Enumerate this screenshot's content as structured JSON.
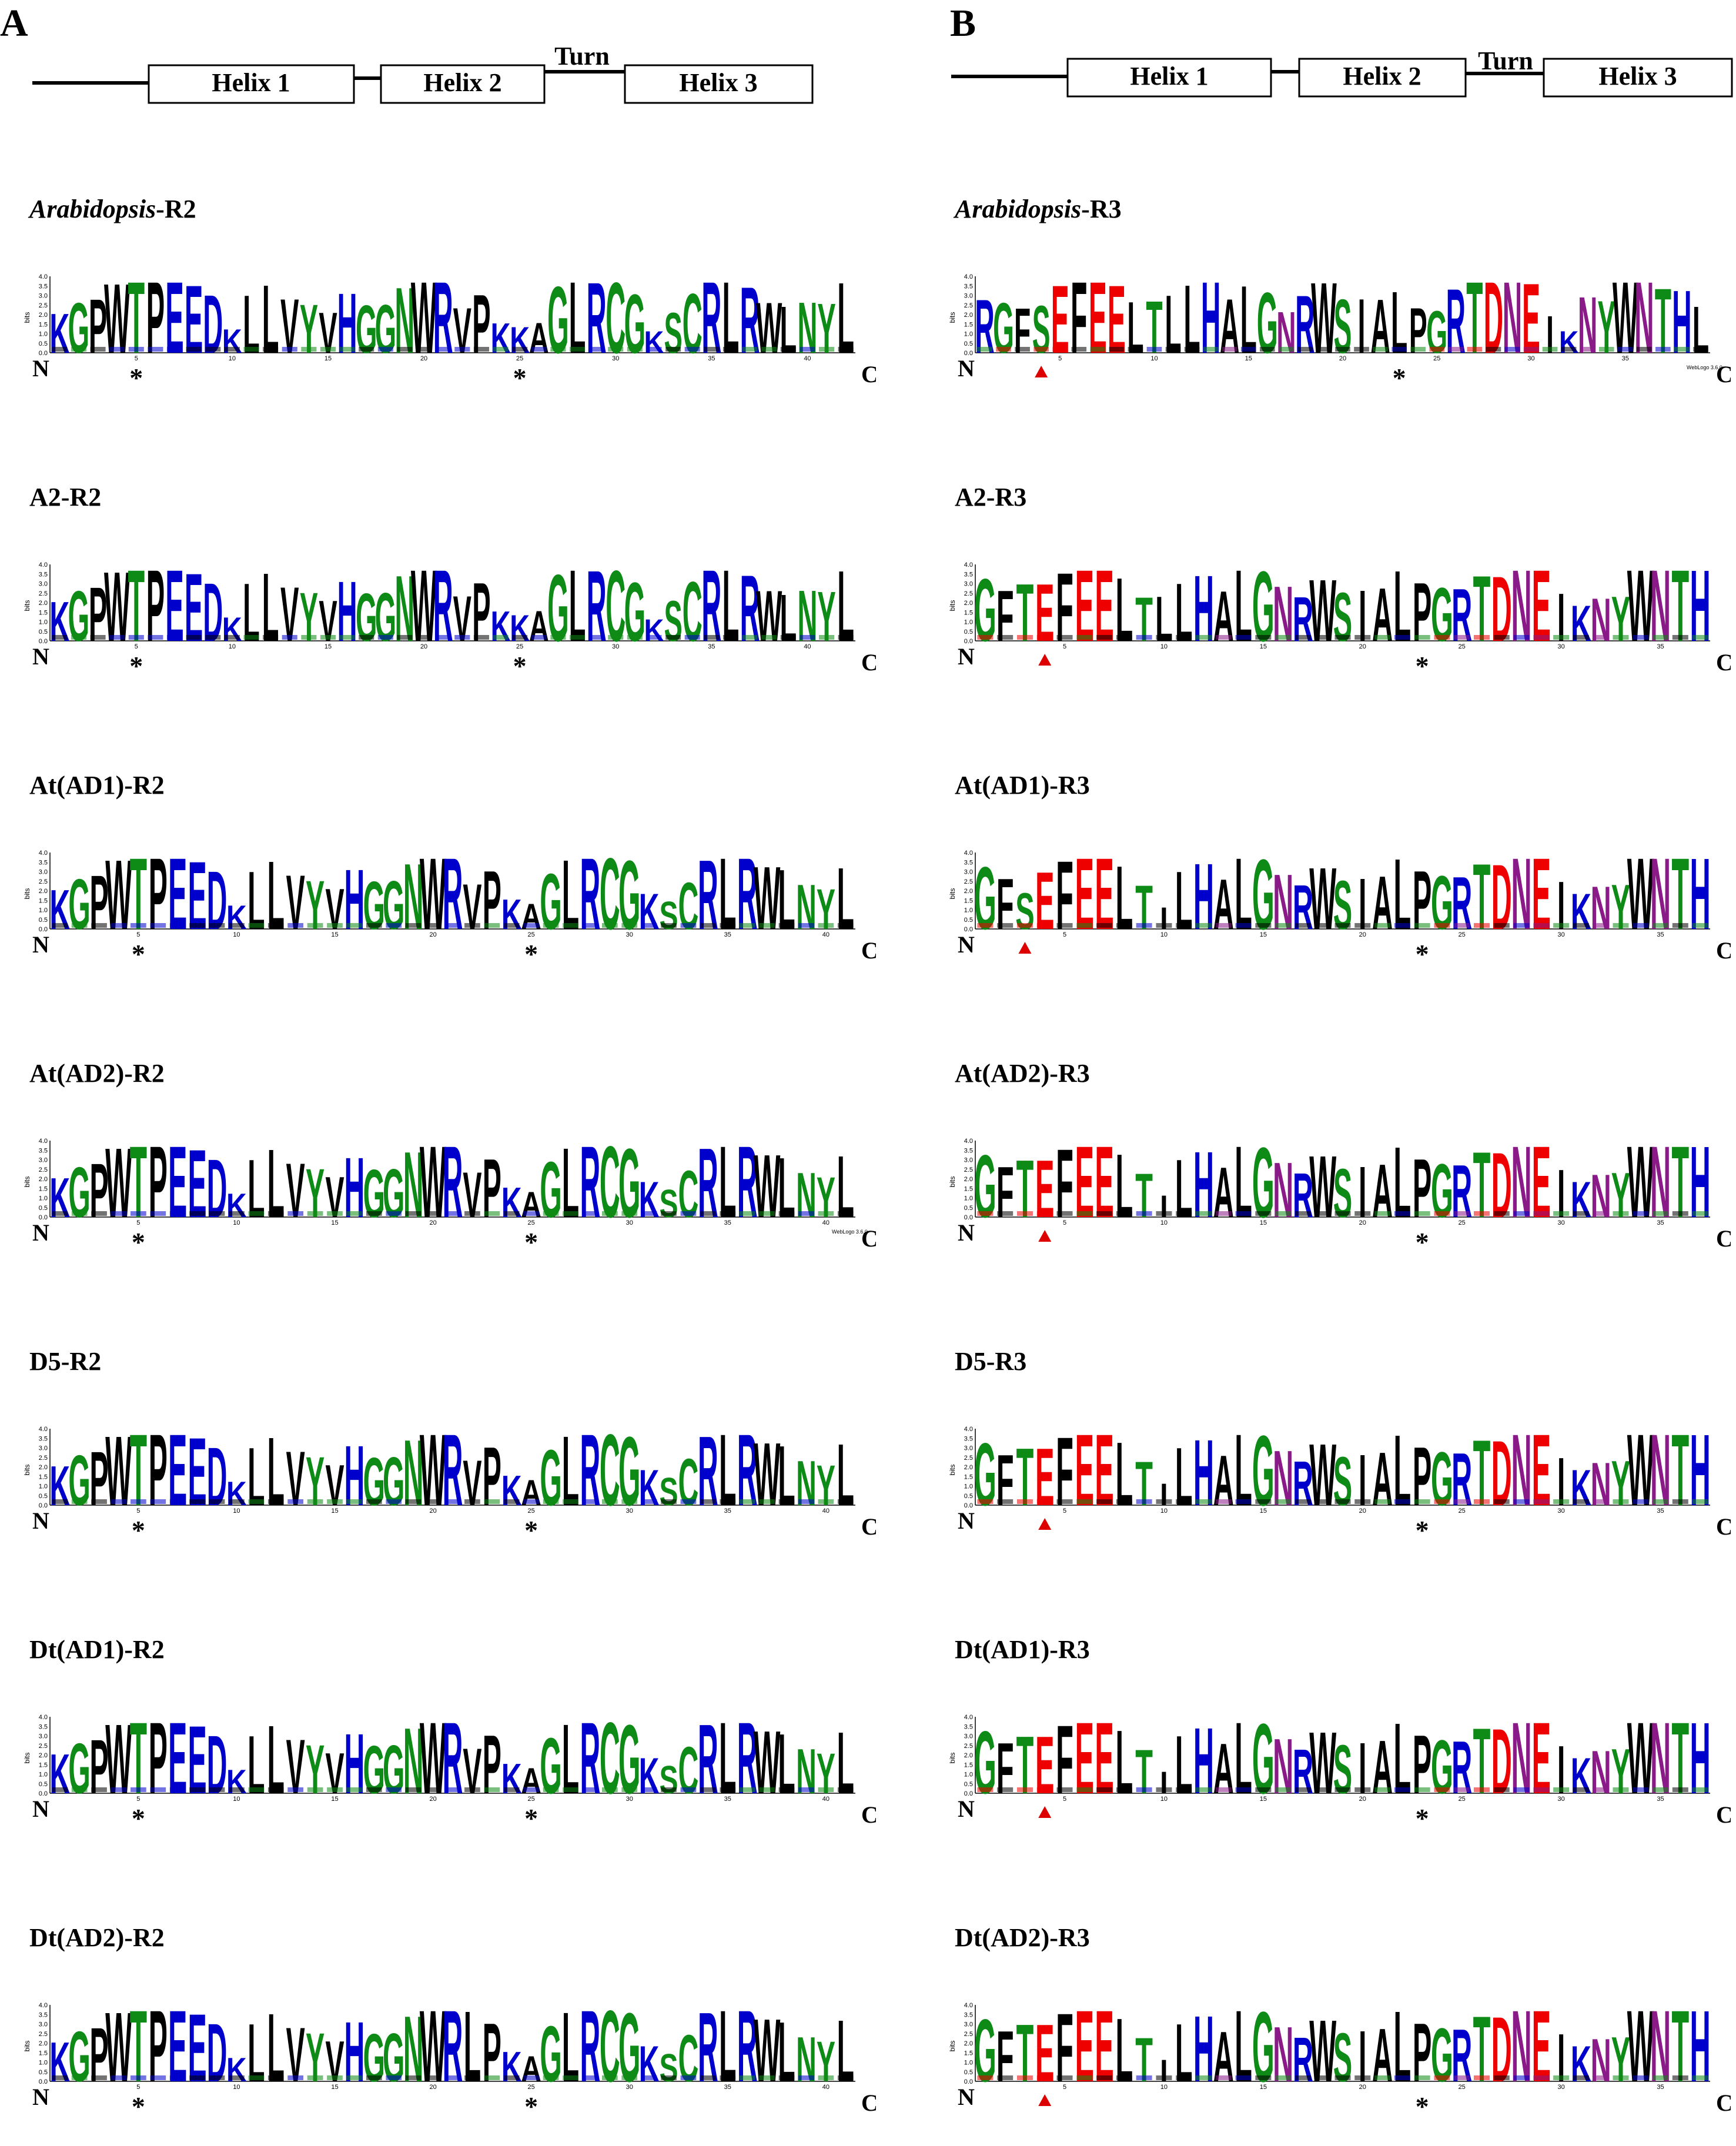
{
  "panels": [
    {
      "letter": "A",
      "structure": {
        "helix1": "Helix 1",
        "helix2": "Helix 2",
        "turn": "Turn",
        "helix3": "Helix 3"
      },
      "logos": [
        {
          "title_italic": "Arabidopsis",
          "title_rest": "-R2",
          "seq": "KGPWTPEEDKLLVYVHGGNWRVPKKAGLRCGKSCRLRWLNYL",
          "ticks": [
            "5",
            "10",
            "15",
            "20",
            "25",
            "30",
            "35",
            "40",
            "45"
          ],
          "n": "N",
          "c": "C",
          "stars": [
            5,
            25,
            45
          ],
          "triangle": null,
          "webl": ""
        },
        {
          "title_italic": "",
          "title_rest": "A2-R2",
          "seq": "KGPWTPEEDKLLVYVHGGNWRVPKKAGLRCGKSCRLRWLNYL",
          "ticks": [
            "5",
            "10",
            "15",
            "20",
            "25",
            "30",
            "35",
            "40",
            "45"
          ],
          "n": "N",
          "c": "C",
          "stars": [
            5,
            25,
            45
          ],
          "triangle": null,
          "webl": ""
        },
        {
          "title_italic": "",
          "title_rest": "At(AD1)-R2",
          "seq": "KGPWTPEEDKLLVYVHGGNWRVPKAGLRCGKSCRLRWLNYL",
          "ticks": [
            "5",
            "10",
            "15",
            "20",
            "25",
            "30",
            "35",
            "40",
            "45",
            "50"
          ],
          "n": "N",
          "c": "C",
          "stars": [
            5,
            25,
            46
          ],
          "triangle": null,
          "webl": ""
        },
        {
          "title_italic": "",
          "title_rest": "At(AD2)-R2",
          "seq": "KGPWTPEEDKLLVYVHGGNWRVPKAGLRCGKSCRLRWLNYL",
          "ticks": [
            "5",
            "10",
            "15",
            "20",
            "25",
            "30",
            "35",
            "40",
            "45"
          ],
          "n": "N",
          "c": "C",
          "stars": [
            5,
            25,
            46
          ],
          "triangle": null,
          "webl": "WebLogo 3.6.0"
        },
        {
          "title_italic": "",
          "title_rest": "D5-R2",
          "seq": "KGPWTPEEDKLLVYVHGGNWRVPKAGLRCGKSCRLRWLNYL",
          "ticks": [
            "5",
            "10",
            "15",
            "20",
            "25",
            "30",
            "35",
            "40",
            "45",
            "50"
          ],
          "n": "N",
          "c": "C",
          "stars": [
            5,
            25,
            46
          ],
          "triangle": null,
          "webl": ""
        },
        {
          "title_italic": "",
          "title_rest": "Dt(AD1)-R2",
          "seq": "KGPWTPEEDKLLVYVHGGNWRVPKAGLRCGKSCRLRWLNYL",
          "ticks": [
            "5",
            "10",
            "15",
            "20",
            "25",
            "30",
            "35",
            "40",
            "45"
          ],
          "n": "N",
          "c": "C",
          "stars": [
            5,
            25,
            45
          ],
          "triangle": null,
          "webl": ""
        },
        {
          "title_italic": "",
          "title_rest": "Dt(AD2)-R2",
          "seq": "KGPWTPEEDKLLVYVHGGNWRLPKAGLRCGKSCRLRWLNYL",
          "ticks": [
            "5",
            "10",
            "15",
            "20",
            "25",
            "30",
            "35",
            "40",
            "45"
          ],
          "n": "N",
          "c": "C",
          "stars": [
            5,
            25,
            45
          ],
          "triangle": null,
          "webl": ""
        }
      ]
    },
    {
      "letter": "B",
      "structure": {
        "helix1": "Helix 1",
        "helix2": "Helix 2",
        "turn": "Turn",
        "helix3": "Helix 3"
      },
      "logos": [
        {
          "title_italic": "Arabidopsis",
          "title_rest": "-R3",
          "seq": "RGFSEFEELTLLHALGNRWSIALPGRTDNEIKNYWNTHL",
          "ticks": [
            "5",
            "10",
            "15",
            "20",
            "25",
            "30",
            "35",
            "40",
            "45"
          ],
          "n": "N",
          "c": "C",
          "stars": [
            23,
            44
          ],
          "triangle": 4,
          "webl": "WebLogo 3.6.0"
        },
        {
          "title_italic": "",
          "title_rest": "A2-R3",
          "seq": "GFTEFEELTLLHALGNRWSIALPGRTDNEIKNYWNTH",
          "ticks": [
            "5",
            "10",
            "15",
            "20",
            "25",
            "30",
            "35",
            "40",
            "45"
          ],
          "n": "N",
          "c": "C",
          "stars": [
            23,
            43
          ],
          "triangle": 4,
          "webl": ""
        },
        {
          "title_italic": "",
          "title_rest": "At(AD1)-R3",
          "seq": "GFSEFEELTILHALGNRWSIALPGRTDNEIKNYWNTH",
          "ticks": [
            "5",
            "10",
            "15",
            "20",
            "25",
            "30",
            "35",
            "40",
            "45"
          ],
          "n": "N",
          "c": "C",
          "stars": [
            23,
            44
          ],
          "triangle": 3,
          "webl": ""
        },
        {
          "title_italic": "",
          "title_rest": "At(AD2)-R3",
          "seq": "GFTEFEELTILHALGNRWSIALPGRTDNEIKNYWNTH",
          "ticks": [
            "5",
            "10",
            "15",
            "20",
            "25",
            "30",
            "35",
            "40",
            "45"
          ],
          "n": "N",
          "c": "C",
          "stars": [
            23,
            42
          ],
          "triangle": 4,
          "webl": ""
        },
        {
          "title_italic": "",
          "title_rest": "D5-R3",
          "seq": "GFTEFEELTILHALGNRWSIALPGRTDNEIKNYWNTH",
          "ticks": [
            "5",
            "10",
            "15",
            "20",
            "25",
            "30",
            "35",
            "40",
            "45"
          ],
          "n": "N",
          "c": "C",
          "stars": [
            23,
            42
          ],
          "triangle": 4,
          "webl": ""
        },
        {
          "title_italic": "",
          "title_rest": "Dt(AD1)-R3",
          "seq": "GFTEFEELTILHALGNRWSIALPGRTDNEIKNYWNTH",
          "ticks": [
            "5",
            "10",
            "15",
            "20",
            "25",
            "30",
            "35",
            "40",
            "45"
          ],
          "n": "N",
          "c": "C",
          "stars": [
            23,
            44
          ],
          "triangle": 4,
          "webl": ""
        },
        {
          "title_italic": "",
          "title_rest": "Dt(AD2)-R3",
          "seq": "GFTEFEELTILHALGNRWSIALPGRTDNEIKNYWNTH",
          "ticks": [
            "5",
            "10",
            "15",
            "20",
            "25",
            "30",
            "35",
            "40",
            "45"
          ],
          "n": "N",
          "c": "C",
          "stars": [
            23,
            42
          ],
          "triangle": 4,
          "webl": ""
        }
      ]
    }
  ],
  "ylabel": "bits",
  "yticks": [
    "0.0",
    "0.5",
    "1.0",
    "1.5",
    "2.0",
    "2.5",
    "3.0",
    "3.5",
    "4.0"
  ],
  "colors": {
    "blue": "#0000cc",
    "green": "#0e8a16",
    "black": "#000000",
    "red": "#ee0000",
    "purple": "#8b1a89",
    "triangle": "#dd0000"
  }
}
